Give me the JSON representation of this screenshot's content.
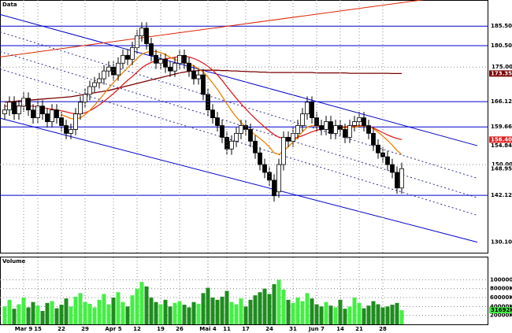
{
  "chart_data": {
    "type": "candlestick",
    "title": "Data",
    "categories": [
      null,
      null,
      null,
      null,
      "Mar 9",
      null,
      null,
      "15",
      null,
      null,
      null,
      null,
      "22",
      null,
      null,
      null,
      null,
      "29",
      null,
      null,
      null,
      null,
      null,
      "Apr 5",
      null,
      null,
      null,
      null,
      "12",
      null,
      null,
      null,
      null,
      "19",
      null,
      null,
      null,
      "26",
      null,
      null,
      null,
      null,
      null,
      "Mai 4",
      null,
      null,
      null,
      "11",
      null,
      null,
      null,
      "17",
      null,
      null,
      null,
      null,
      "24",
      null,
      null,
      null,
      null,
      "31",
      null,
      null,
      null,
      null,
      "Jun 7",
      null,
      null,
      null,
      null,
      "14",
      null,
      null,
      null,
      "21",
      null,
      null,
      null,
      null,
      "28",
      null,
      null,
      null,
      null
    ],
    "open": [
      163,
      164,
      166,
      163,
      165,
      167,
      164,
      162,
      165,
      163,
      161,
      164,
      162,
      160,
      158,
      159,
      163,
      166,
      168,
      170,
      171,
      172,
      174,
      175,
      173,
      176,
      178,
      177,
      180,
      183,
      185,
      181,
      178,
      176,
      177,
      175,
      174,
      176,
      178,
      176,
      174,
      172,
      173,
      168,
      164,
      162,
      160,
      157,
      154,
      156,
      158,
      160,
      159,
      156,
      153,
      150,
      148,
      146,
      143,
      150,
      157,
      156,
      158,
      160,
      163,
      166,
      162,
      160,
      159,
      161,
      158,
      160,
      159,
      157,
      160,
      161,
      162,
      160,
      158,
      155,
      153,
      152,
      150,
      148,
      144
    ],
    "high": [
      165.5,
      167.5,
      167.5,
      166.5,
      168.5,
      168.5,
      165.5,
      166.5,
      166.5,
      164.5,
      165.5,
      165.5,
      163.5,
      161.5,
      160.5,
      164.5,
      167.5,
      169.5,
      171.5,
      172.5,
      173.5,
      175.5,
      176.5,
      176.5,
      177.5,
      179.5,
      179.5,
      181.5,
      184.5,
      186.5,
      186.5,
      182.5,
      179.5,
      178.5,
      178.5,
      176.5,
      177.5,
      179.5,
      179.5,
      177.5,
      175.5,
      174.5,
      174.5,
      169.5,
      165.5,
      163.5,
      161.5,
      158.5,
      157.5,
      159.5,
      161.5,
      161.5,
      160.5,
      157.5,
      154.5,
      151.5,
      149.5,
      147.5,
      151.5,
      158.5,
      158.5,
      159.5,
      161.5,
      164.5,
      167.5,
      167.5,
      163.5,
      161.5,
      162.5,
      162.5,
      161.5,
      161.5,
      160.5,
      161.5,
      162.5,
      163.5,
      163.5,
      161.5,
      159.5,
      156.5,
      154.5,
      153.5,
      151.5,
      149.5,
      150.5
    ],
    "low": [
      161.5,
      162.5,
      161.5,
      161.5,
      163.5,
      162.5,
      160.5,
      160.5,
      161.5,
      159.5,
      159.5,
      160.5,
      158.5,
      156.5,
      156.5,
      157.5,
      161.5,
      164.5,
      166.5,
      168.5,
      169.5,
      170.5,
      172.5,
      171.5,
      171.5,
      174.5,
      175.5,
      175.5,
      178.5,
      181.5,
      179.5,
      176.5,
      174.5,
      174.5,
      173.5,
      172.5,
      172.5,
      174.5,
      174.5,
      172.5,
      170.5,
      170.5,
      166.5,
      162.5,
      160.5,
      158.5,
      155.5,
      152.5,
      152.5,
      154.5,
      156.5,
      157.5,
      154.5,
      151.5,
      148.5,
      146.5,
      144.5,
      140.5,
      141.5,
      148.5,
      154.5,
      154.5,
      156.5,
      158.5,
      161.5,
      160.5,
      158.5,
      157.5,
      157.5,
      156.5,
      156.5,
      157.5,
      155.5,
      155.5,
      158.5,
      159.5,
      158.5,
      156.5,
      153.5,
      151.5,
      150.5,
      148.5,
      146.5,
      142.5,
      142.5
    ],
    "close": [
      164,
      166,
      163,
      165,
      167,
      164,
      162,
      165,
      163,
      161,
      164,
      162,
      160,
      158,
      159,
      163,
      166,
      168,
      170,
      171,
      172,
      174,
      175,
      173,
      176,
      178,
      177,
      180,
      183,
      185,
      181,
      178,
      176,
      177,
      175,
      174,
      176,
      178,
      176,
      174,
      172,
      173,
      168,
      164,
      162,
      160,
      157,
      154,
      156,
      158,
      160,
      159,
      156,
      153,
      150,
      148,
      146,
      142,
      150,
      157,
      156,
      158,
      160,
      163,
      166,
      162,
      160,
      159,
      161,
      158,
      160,
      159,
      157,
      160,
      161,
      162,
      160,
      158,
      155,
      153,
      152,
      150,
      148,
      144,
      148.95
    ],
    "up_color": "#ffffff",
    "down_color": "#000000",
    "ylim": [
      127.2,
      192.2
    ],
    "yticks": [
      {
        "value": 150,
        "label": "150.00"
      },
      {
        "value": 175,
        "label": "175.00"
      }
    ],
    "grid": true,
    "levels": [
      {
        "value": 185.5,
        "label": "185.5000"
      },
      {
        "value": 180.5,
        "label": "180.5000"
      },
      {
        "value": 166.125,
        "label": "166.1250"
      },
      {
        "value": 159.66,
        "label": "159.6600"
      },
      {
        "value": 142.12,
        "label": "142.1200"
      }
    ],
    "level_color": "#0000cc",
    "lines": [
      {
        "color": "#7a0000",
        "values": [
          166.0,
          166.1,
          166.2,
          166.3,
          166.4,
          166.5,
          166.6,
          166.7,
          166.8,
          166.9,
          167.0,
          167.1,
          167.2,
          167.3,
          167.4,
          167.6,
          167.8,
          168.0,
          168.2,
          168.4,
          168.6,
          168.8,
          169.0,
          169.3,
          169.6,
          169.9,
          170.2,
          170.5,
          170.8,
          171.1,
          171.4,
          171.7,
          172.0,
          172.3,
          172.6,
          172.9,
          173.2,
          173.5,
          173.7,
          173.9,
          174.0,
          174.1,
          174.2,
          174.2,
          174.2,
          174.2,
          174.1,
          174.1,
          174.0,
          174.0,
          173.9,
          173.9,
          173.8,
          173.8,
          173.7,
          173.7,
          173.6,
          173.6,
          173.6,
          173.6,
          173.6,
          173.6,
          173.6,
          173.6,
          173.6,
          173.6,
          173.5,
          173.5,
          173.5,
          173.5,
          173.5,
          173.5,
          173.5,
          173.4,
          173.4,
          173.4,
          173.4,
          173.4,
          173.4,
          173.4,
          173.4,
          173.4,
          173.35,
          173.35,
          173.35
        ]
      },
      {
        "color": "#e02020",
        "values": [
          165,
          165,
          165,
          165,
          165,
          165,
          165,
          164.8,
          164.6,
          164.4,
          164.2,
          164,
          163.8,
          163.5,
          163.2,
          163,
          163,
          163.3,
          163.8,
          164.5,
          165.3,
          166.2,
          167.2,
          168.2,
          169.3,
          170.5,
          171.6,
          172.6,
          173.7,
          174.8,
          175.6,
          176.2,
          176.6,
          176.9,
          177.1,
          177.3,
          177.5,
          177.7,
          177.8,
          177.6,
          177.2,
          176.7,
          176,
          175.2,
          174.2,
          173,
          171.6,
          170,
          168.5,
          167,
          165.6,
          164.3,
          163,
          161.8,
          160.7,
          159.6,
          158.6,
          157.7,
          157,
          156.7,
          156.6,
          156.7,
          157,
          157.4,
          157.9,
          158.4,
          158.8,
          159.1,
          159.3,
          159.4,
          159.5,
          159.6,
          159.7,
          159.8,
          159.9,
          160,
          160,
          159.8,
          159.4,
          158.8,
          158.2,
          157.6,
          157.1,
          156.7,
          156.4
        ]
      },
      {
        "color": "#f08000",
        "values": [
          null,
          null,
          null,
          null,
          null,
          null,
          null,
          null,
          null,
          null,
          null,
          null,
          162.8,
          162.3,
          161.8,
          161.7,
          162,
          162.8,
          163.9,
          165.2,
          166.6,
          168.1,
          169.6,
          171,
          172.3,
          173.6,
          174.8,
          176,
          177.2,
          178.3,
          178.8,
          179,
          179,
          178.7,
          178.2,
          177.5,
          176.9,
          176.6,
          176.3,
          175.9,
          175.3,
          174.6,
          173.7,
          172.4,
          170.9,
          169.3,
          167.5,
          165.6,
          163.8,
          162.2,
          160.8,
          159.6,
          158.6,
          157.6,
          156.7,
          155.7,
          154.5,
          153,
          152.6,
          153.5,
          154.6,
          155.8,
          157.1,
          158.4,
          159.6,
          160,
          159.9,
          159.7,
          159.7,
          159.5,
          159.3,
          159.4,
          159.4,
          159.5,
          159.6,
          159.8,
          159.9,
          159.8,
          159.2,
          158.3,
          157.3,
          156.2,
          155,
          153.6,
          152.6
        ]
      }
    ],
    "trendlines": [
      {
        "color": "#0000cc",
        "x": [
          -1,
          100
        ],
        "y": [
          188.5,
          154.8426
        ],
        "label": "154.8426"
      },
      {
        "color": "#0000cc",
        "x": [
          -1,
          100
        ],
        "y": [
          161.9,
          130.1094
        ],
        "label": "130.1094"
      },
      {
        "color": "#dd2200",
        "x": [
          -1,
          90
        ],
        "y": [
          177.6,
          192.5
        ]
      },
      {
        "color": "#303090",
        "dashed": true,
        "x": [
          -1,
          100
        ],
        "y": [
          184.0,
          146.5
        ]
      },
      {
        "color": "#303090",
        "dashed": true,
        "x": [
          -1,
          100
        ],
        "y": [
          179.0,
          141.5
        ]
      },
      {
        "color": "#303090",
        "dashed": true,
        "x": [
          -1,
          100
        ],
        "y": [
          174.5,
          137.0
        ]
      }
    ],
    "tags": [
      {
        "value": 173.35,
        "label": "173.35",
        "color": "#7a0000"
      },
      {
        "value": 156.4,
        "label": "156.40",
        "color": "#e02020"
      },
      {
        "value": 148.95,
        "label": "148.95",
        "color": "#ffffff"
      }
    ],
    "volume": {
      "title": "Volume",
      "up_color": "#44ee44",
      "down_color": "#1e8c1e",
      "values": [
        40000,
        55000,
        35000,
        45000,
        60000,
        38000,
        50000,
        42000,
        30000,
        48000,
        52000,
        36000,
        44000,
        58000,
        40000,
        62000,
        70000,
        50000,
        46000,
        38000,
        55000,
        68000,
        45000,
        60000,
        72000,
        50000,
        40000,
        65000,
        80000,
        95000,
        85000,
        60000,
        50000,
        45000,
        55000,
        40000,
        48000,
        52000,
        44000,
        38000,
        50000,
        46000,
        70000,
        82000,
        60000,
        55000,
        62000,
        75000,
        50000,
        45000,
        58000,
        40000,
        55000,
        65000,
        72000,
        80000,
        68000,
        90000,
        100000,
        78000,
        55000,
        48000,
        60000,
        52000,
        70000,
        58000,
        45000,
        40000,
        50000,
        42000,
        38000,
        55000,
        35000,
        40000,
        60000,
        48000,
        36000,
        42000,
        52000,
        45000,
        38000,
        40000,
        44000,
        48000,
        31692
      ],
      "ylim": [
        0,
        150000
      ],
      "yticks": [
        {
          "value": 20000,
          "label": "20000K"
        },
        {
          "value": 40000,
          "label": "40000K"
        },
        {
          "value": 60000,
          "label": "60000K"
        },
        {
          "value": 80000,
          "label": "80000K"
        },
        {
          "value": 100000,
          "label": "100000K"
        }
      ],
      "tag": {
        "value": 31692,
        "label": "31692K",
        "color": "#44ee44"
      }
    }
  }
}
